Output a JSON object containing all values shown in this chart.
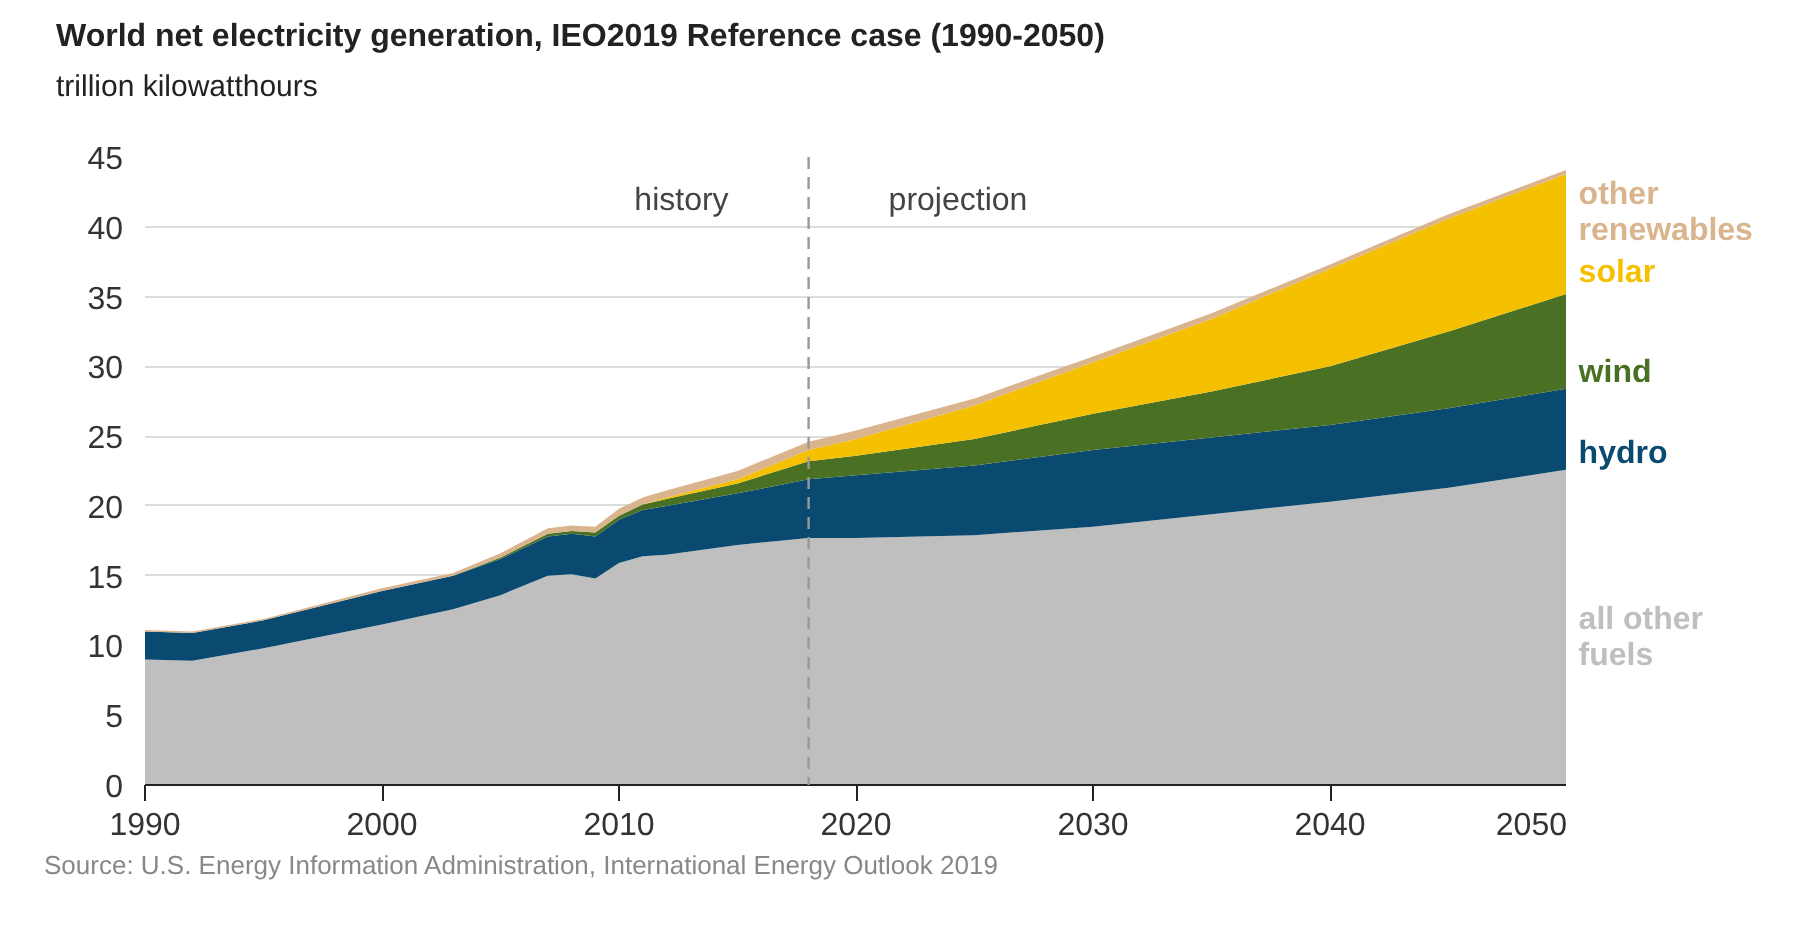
{
  "chart_data": {
    "type": "area",
    "stacked": true,
    "title": "World net electricity generation, IEO2019 Reference case  (1990-2050)",
    "ylabel": "trillion kilowatthours",
    "x": [
      1990,
      1992,
      1995,
      2000,
      2003,
      2005,
      2007,
      2008,
      2009,
      2010,
      2011,
      2012,
      2015,
      2018,
      2020,
      2025,
      2030,
      2035,
      2040,
      2045,
      2050
    ],
    "series": [
      {
        "name": "all other fuels",
        "color": "#bfbfbf",
        "values": [
          9.0,
          8.9,
          9.8,
          11.5,
          12.6,
          13.6,
          15.0,
          15.1,
          14.8,
          15.9,
          16.4,
          16.5,
          17.2,
          17.7,
          17.7,
          17.9,
          18.5,
          19.4,
          20.3,
          21.3,
          22.6
        ]
      },
      {
        "name": "hydro",
        "color": "#0b4a70",
        "values": [
          2.0,
          2.0,
          2.0,
          2.4,
          2.4,
          2.6,
          2.8,
          2.9,
          3.0,
          3.1,
          3.3,
          3.5,
          3.7,
          4.2,
          4.5,
          5.0,
          5.5,
          5.5,
          5.5,
          5.7,
          5.8
        ]
      },
      {
        "name": "wind",
        "color": "#4a7023",
        "values": [
          0,
          0,
          0,
          0,
          0,
          0.1,
          0.2,
          0.2,
          0.3,
          0.3,
          0.4,
          0.5,
          0.7,
          1.3,
          1.4,
          1.9,
          2.6,
          3.3,
          4.2,
          5.5,
          6.8
        ]
      },
      {
        "name": "solar",
        "color": "#f5c000",
        "values": [
          0,
          0,
          0,
          0,
          0,
          0,
          0,
          0,
          0,
          0,
          0,
          0.1,
          0.3,
          0.8,
          1.2,
          2.4,
          3.7,
          5.2,
          7.0,
          8.1,
          8.6
        ]
      },
      {
        "name": "other renewables",
        "color": "#d9b48c",
        "values": [
          0.1,
          0.1,
          0.1,
          0.2,
          0.2,
          0.3,
          0.4,
          0.4,
          0.4,
          0.5,
          0.5,
          0.5,
          0.6,
          0.6,
          0.6,
          0.5,
          0.4,
          0.4,
          0.3,
          0.3,
          0.3
        ]
      }
    ],
    "xlim": [
      1990,
      2050
    ],
    "xticks": [
      1990,
      2000,
      2010,
      2020,
      2030,
      2040,
      2050
    ],
    "ylim": [
      0,
      45
    ],
    "yticks": [
      0,
      5,
      10,
      15,
      20,
      25,
      30,
      35,
      40,
      45
    ],
    "grid": "y",
    "legend": false,
    "ref_lines": [
      {
        "axis": "x",
        "value": 2018,
        "label": null,
        "color": "#999999",
        "line_style": "dashed"
      }
    ],
    "annotations": [
      "history",
      "projection",
      "Source: U.S. Energy Information Administration, International Energy Outlook 2019"
    ]
  }
}
